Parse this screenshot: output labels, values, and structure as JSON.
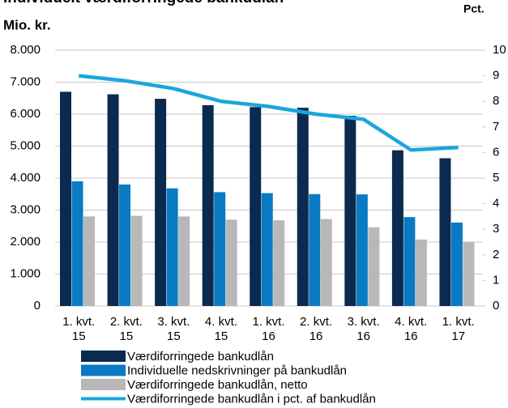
{
  "chart_data": {
    "type": "bar_line",
    "title": "Individuelt værdiforringede bankudlån",
    "y_label": "Mio. kr.",
    "y2_label": "Pct.",
    "categories": [
      "1. kvt. 15",
      "2. kvt. 15",
      "3. kvt. 15",
      "4. kvt. 15",
      "1. kvt. 16",
      "2. kvt. 16",
      "3. kvt. 16",
      "4. kvt. 16",
      "1. kvt. 17"
    ],
    "series": [
      {
        "name": "Værdiforringede bankudlån",
        "color": "#0b2a4f",
        "kind": "bar",
        "values": [
          6700,
          6620,
          6480,
          6280,
          6220,
          6200,
          5950,
          4870,
          4620
        ]
      },
      {
        "name": "Individuelle nedskrivninger på bankudlån",
        "color": "#0a7ac4",
        "kind": "bar",
        "values": [
          3900,
          3800,
          3680,
          3560,
          3530,
          3500,
          3490,
          2780,
          2610
        ]
      },
      {
        "name": "Værdiforringede bankudlån, netto",
        "color": "#b8b8b8",
        "kind": "bar",
        "values": [
          2800,
          2820,
          2800,
          2700,
          2680,
          2720,
          2460,
          2080,
          2000
        ]
      },
      {
        "name": "Værdiforringede bankudlån i pct. af bankudlån",
        "color": "#1aa6dc",
        "kind": "line",
        "axis": "y2",
        "values": [
          9.0,
          8.8,
          8.5,
          8.0,
          7.8,
          7.5,
          7.3,
          6.1,
          6.2
        ]
      }
    ],
    "ylim": [
      0,
      8000
    ],
    "yticks": [
      0,
      {
        "value": 1000,
        "label": "1.000"
      },
      {
        "value": 2000,
        "label": "2.000"
      },
      {
        "value": 3000,
        "label": "3.000"
      },
      {
        "value": 4000,
        "label": "4.000"
      },
      {
        "value": 5000,
        "label": "5.000"
      },
      {
        "value": 6000,
        "label": "6.000"
      },
      {
        "value": 7000,
        "label": "7.000"
      },
      {
        "value": 8000,
        "label": "8.000"
      }
    ],
    "y2lim": [
      0,
      10
    ],
    "y2ticks": [
      0,
      1,
      2,
      3,
      4,
      5,
      6,
      7,
      8,
      9,
      10
    ],
    "grid": true
  }
}
